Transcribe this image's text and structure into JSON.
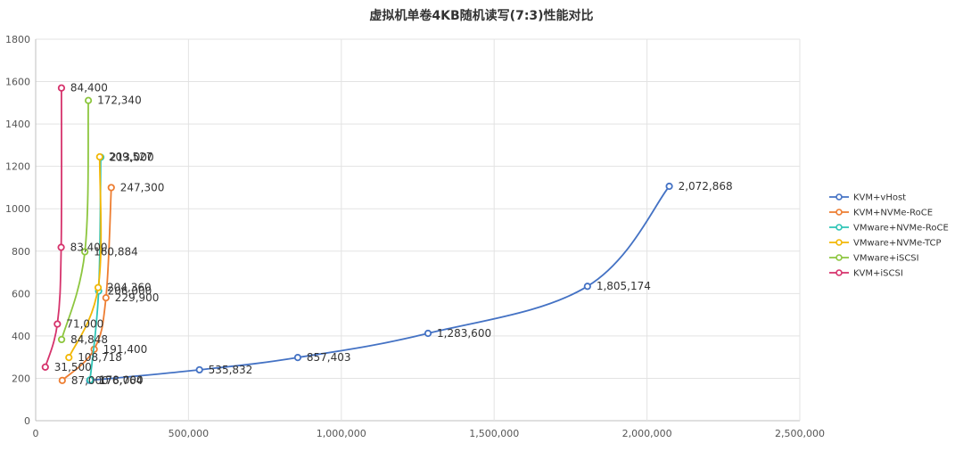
{
  "chart_data": {
    "type": "line",
    "title": "虚拟机单卷4KB随机读写(7:3)性能对比",
    "xlabel": "",
    "ylabel": "",
    "xlim": [
      0,
      2500000
    ],
    "ylim": [
      0,
      1800
    ],
    "x_ticks": [
      0,
      500000,
      1000000,
      1500000,
      2000000,
      2500000
    ],
    "x_tick_labels": [
      "0",
      "500,000",
      "1,000,000",
      "1,500,000",
      "2,000,000",
      "2,500,000"
    ],
    "y_ticks": [
      0,
      200,
      400,
      600,
      800,
      1000,
      1200,
      1400,
      1600,
      1800
    ],
    "y_tick_labels": [
      "0",
      "200",
      "400",
      "600",
      "800",
      "1000",
      "1200",
      "1400",
      "1600",
      "1800"
    ],
    "grid": true,
    "legend_position": "right",
    "series": [
      {
        "name": "KVM+vHost",
        "color": "#4472C4",
        "x": [
          176764,
          535832,
          857403,
          1283600,
          1805174,
          2072868
        ],
        "y": [
          190,
          240,
          298,
          412,
          634,
          1106
        ],
        "labels": [
          "176,764",
          "535,832",
          "857,403",
          "1,283,600",
          "1,805,174",
          "2,072,868"
        ]
      },
      {
        "name": "KVM+NVMe-RoCE",
        "color": "#ED7D31",
        "x": [
          87000,
          191400,
          229900,
          247300
        ],
        "y": [
          190,
          337,
          580,
          1100
        ],
        "labels": [
          "87,000",
          "191,400",
          "229,900",
          "247,300"
        ]
      },
      {
        "name": "VMware+NVMe-RoCE",
        "color": "#2EC4B6",
        "x": [
          178000,
          206000,
          213000
        ],
        "y": [
          192,
          612,
          1243
        ],
        "labels": [
          "178,000",
          "206,000",
          "213,000"
        ]
      },
      {
        "name": "VMware+NVMe-TCP",
        "color": "#F2B705",
        "x": [
          108718,
          204360,
          209527
        ],
        "y": [
          298,
          628,
          1245
        ],
        "labels": [
          "108,718",
          "204,360",
          "209,527"
        ]
      },
      {
        "name": "VMware+iSCSI",
        "color": "#8DC63F",
        "x": [
          84848,
          160884,
          172340
        ],
        "y": [
          383,
          797,
          1511
        ],
        "labels": [
          "84,848",
          "160,884",
          "172,340"
        ]
      },
      {
        "name": "KVM+iSCSI",
        "color": "#D6336C",
        "x": [
          31500,
          71000,
          83400,
          84400
        ],
        "y": [
          253,
          456,
          818,
          1570
        ],
        "labels": [
          "31,500",
          "71,000",
          "83,400",
          "84,400"
        ]
      }
    ]
  }
}
